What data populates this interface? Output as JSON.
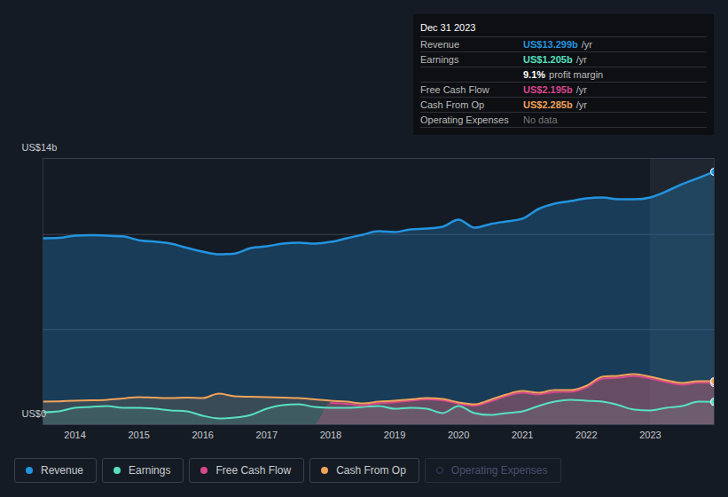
{
  "chart_data": {
    "type": "line",
    "x": [
      2013.5,
      2013.75,
      2014,
      2014.25,
      2014.5,
      2014.75,
      2015,
      2015.25,
      2015.5,
      2015.75,
      2016,
      2016.25,
      2016.5,
      2016.75,
      2017,
      2017.25,
      2017.5,
      2017.75,
      2018,
      2018.25,
      2018.5,
      2018.75,
      2019,
      2019.25,
      2019.5,
      2019.75,
      2020,
      2020.25,
      2020.5,
      2020.75,
      2021,
      2021.25,
      2021.5,
      2021.75,
      2022,
      2022.25,
      2022.5,
      2022.75,
      2023,
      2023.25,
      2023.5,
      2023.75,
      2024
    ],
    "xlim": [
      2013.5,
      2024
    ],
    "xticks": [
      2014,
      2015,
      2016,
      2017,
      2018,
      2019,
      2020,
      2021,
      2022,
      2023
    ],
    "ylim": [
      0,
      14
    ],
    "yticks": [
      {
        "value": 0,
        "label": "US$0"
      },
      {
        "value": 5,
        "label": null
      },
      {
        "value": 10,
        "label": null
      },
      {
        "value": 14,
        "label": "US$14b"
      }
    ],
    "grid": true,
    "legend": "bottom-left",
    "highlight_x": [
      2023,
      2024
    ],
    "series": [
      {
        "name": "Revenue",
        "color": "#2394df",
        "marker": "circle",
        "values": [
          9.8,
          9.82,
          9.94,
          9.96,
          9.94,
          9.9,
          9.7,
          9.62,
          9.52,
          9.3,
          9.1,
          8.96,
          9.0,
          9.29,
          9.38,
          9.52,
          9.57,
          9.52,
          9.61,
          9.8,
          9.99,
          10.17,
          10.13,
          10.27,
          10.31,
          10.41,
          10.78,
          10.36,
          10.55,
          10.69,
          10.83,
          11.34,
          11.62,
          11.76,
          11.9,
          11.95,
          11.85,
          11.85,
          11.95,
          12.27,
          12.65,
          12.97,
          13.299
        ]
      },
      {
        "name": "Earnings",
        "color": "#58e0c1",
        "marker": "circle",
        "values": [
          0.65,
          0.7,
          0.89,
          0.93,
          0.98,
          0.89,
          0.89,
          0.84,
          0.75,
          0.7,
          0.47,
          0.33,
          0.37,
          0.51,
          0.84,
          1.03,
          1.07,
          0.93,
          0.89,
          0.89,
          0.93,
          0.98,
          0.84,
          0.89,
          0.84,
          0.61,
          0.98,
          0.61,
          0.51,
          0.61,
          0.7,
          0.98,
          1.21,
          1.31,
          1.26,
          1.21,
          1.03,
          0.79,
          0.75,
          0.89,
          0.98,
          1.21,
          1.205
        ]
      },
      {
        "name": "Free Cash Flow",
        "color": "#d8478c",
        "marker": "circle",
        "values": [
          null,
          null,
          null,
          null,
          null,
          null,
          null,
          null,
          null,
          null,
          null,
          null,
          null,
          null,
          null,
          null,
          null,
          null,
          1.14,
          1.1,
          1.02,
          1.12,
          1.18,
          1.26,
          1.33,
          1.28,
          1.1,
          1.0,
          1.22,
          1.5,
          1.68,
          1.59,
          1.72,
          1.73,
          1.96,
          2.42,
          2.47,
          2.56,
          2.43,
          2.24,
          2.1,
          2.2,
          2.195
        ]
      },
      {
        "name": "Cash From Op",
        "color": "#f0a35a",
        "marker": "circle",
        "values": [
          1.21,
          1.23,
          1.26,
          1.28,
          1.31,
          1.38,
          1.45,
          1.42,
          1.4,
          1.42,
          1.4,
          1.63,
          1.49,
          1.47,
          1.45,
          1.42,
          1.4,
          1.33,
          1.26,
          1.21,
          1.12,
          1.21,
          1.26,
          1.33,
          1.4,
          1.35,
          1.17,
          1.07,
          1.31,
          1.59,
          1.77,
          1.68,
          1.82,
          1.82,
          2.05,
          2.52,
          2.57,
          2.66,
          2.52,
          2.33,
          2.19,
          2.29,
          2.285
        ]
      },
      {
        "name": "Operating Expenses",
        "color": "#3b3f66",
        "marker": "open_circle",
        "values": [
          null,
          null,
          null,
          null,
          null,
          null,
          null,
          null,
          null,
          null,
          null,
          null,
          null,
          null,
          null,
          null,
          null,
          null,
          null,
          null,
          null,
          null,
          null,
          null,
          null,
          null,
          null,
          null,
          null,
          null,
          null,
          null,
          null,
          null,
          null,
          null,
          null,
          null,
          null,
          null,
          null,
          null,
          null
        ]
      }
    ],
    "tooltip": {
      "title": "Dec 31 2023",
      "rows": [
        {
          "label": "Revenue",
          "value": "US$13.299b",
          "unit": "/yr"
        },
        {
          "label": "Earnings",
          "value": "US$1.205b",
          "unit": "/yr"
        },
        {
          "value": "9.1%",
          "unit": "profit margin"
        },
        {
          "label": "Free Cash Flow",
          "value": "US$2.195b",
          "unit": "/yr"
        },
        {
          "label": "Cash From Op",
          "value": "US$2.285b",
          "unit": "/yr"
        },
        {
          "label": "Operating Expenses",
          "value": "No data"
        }
      ]
    }
  }
}
